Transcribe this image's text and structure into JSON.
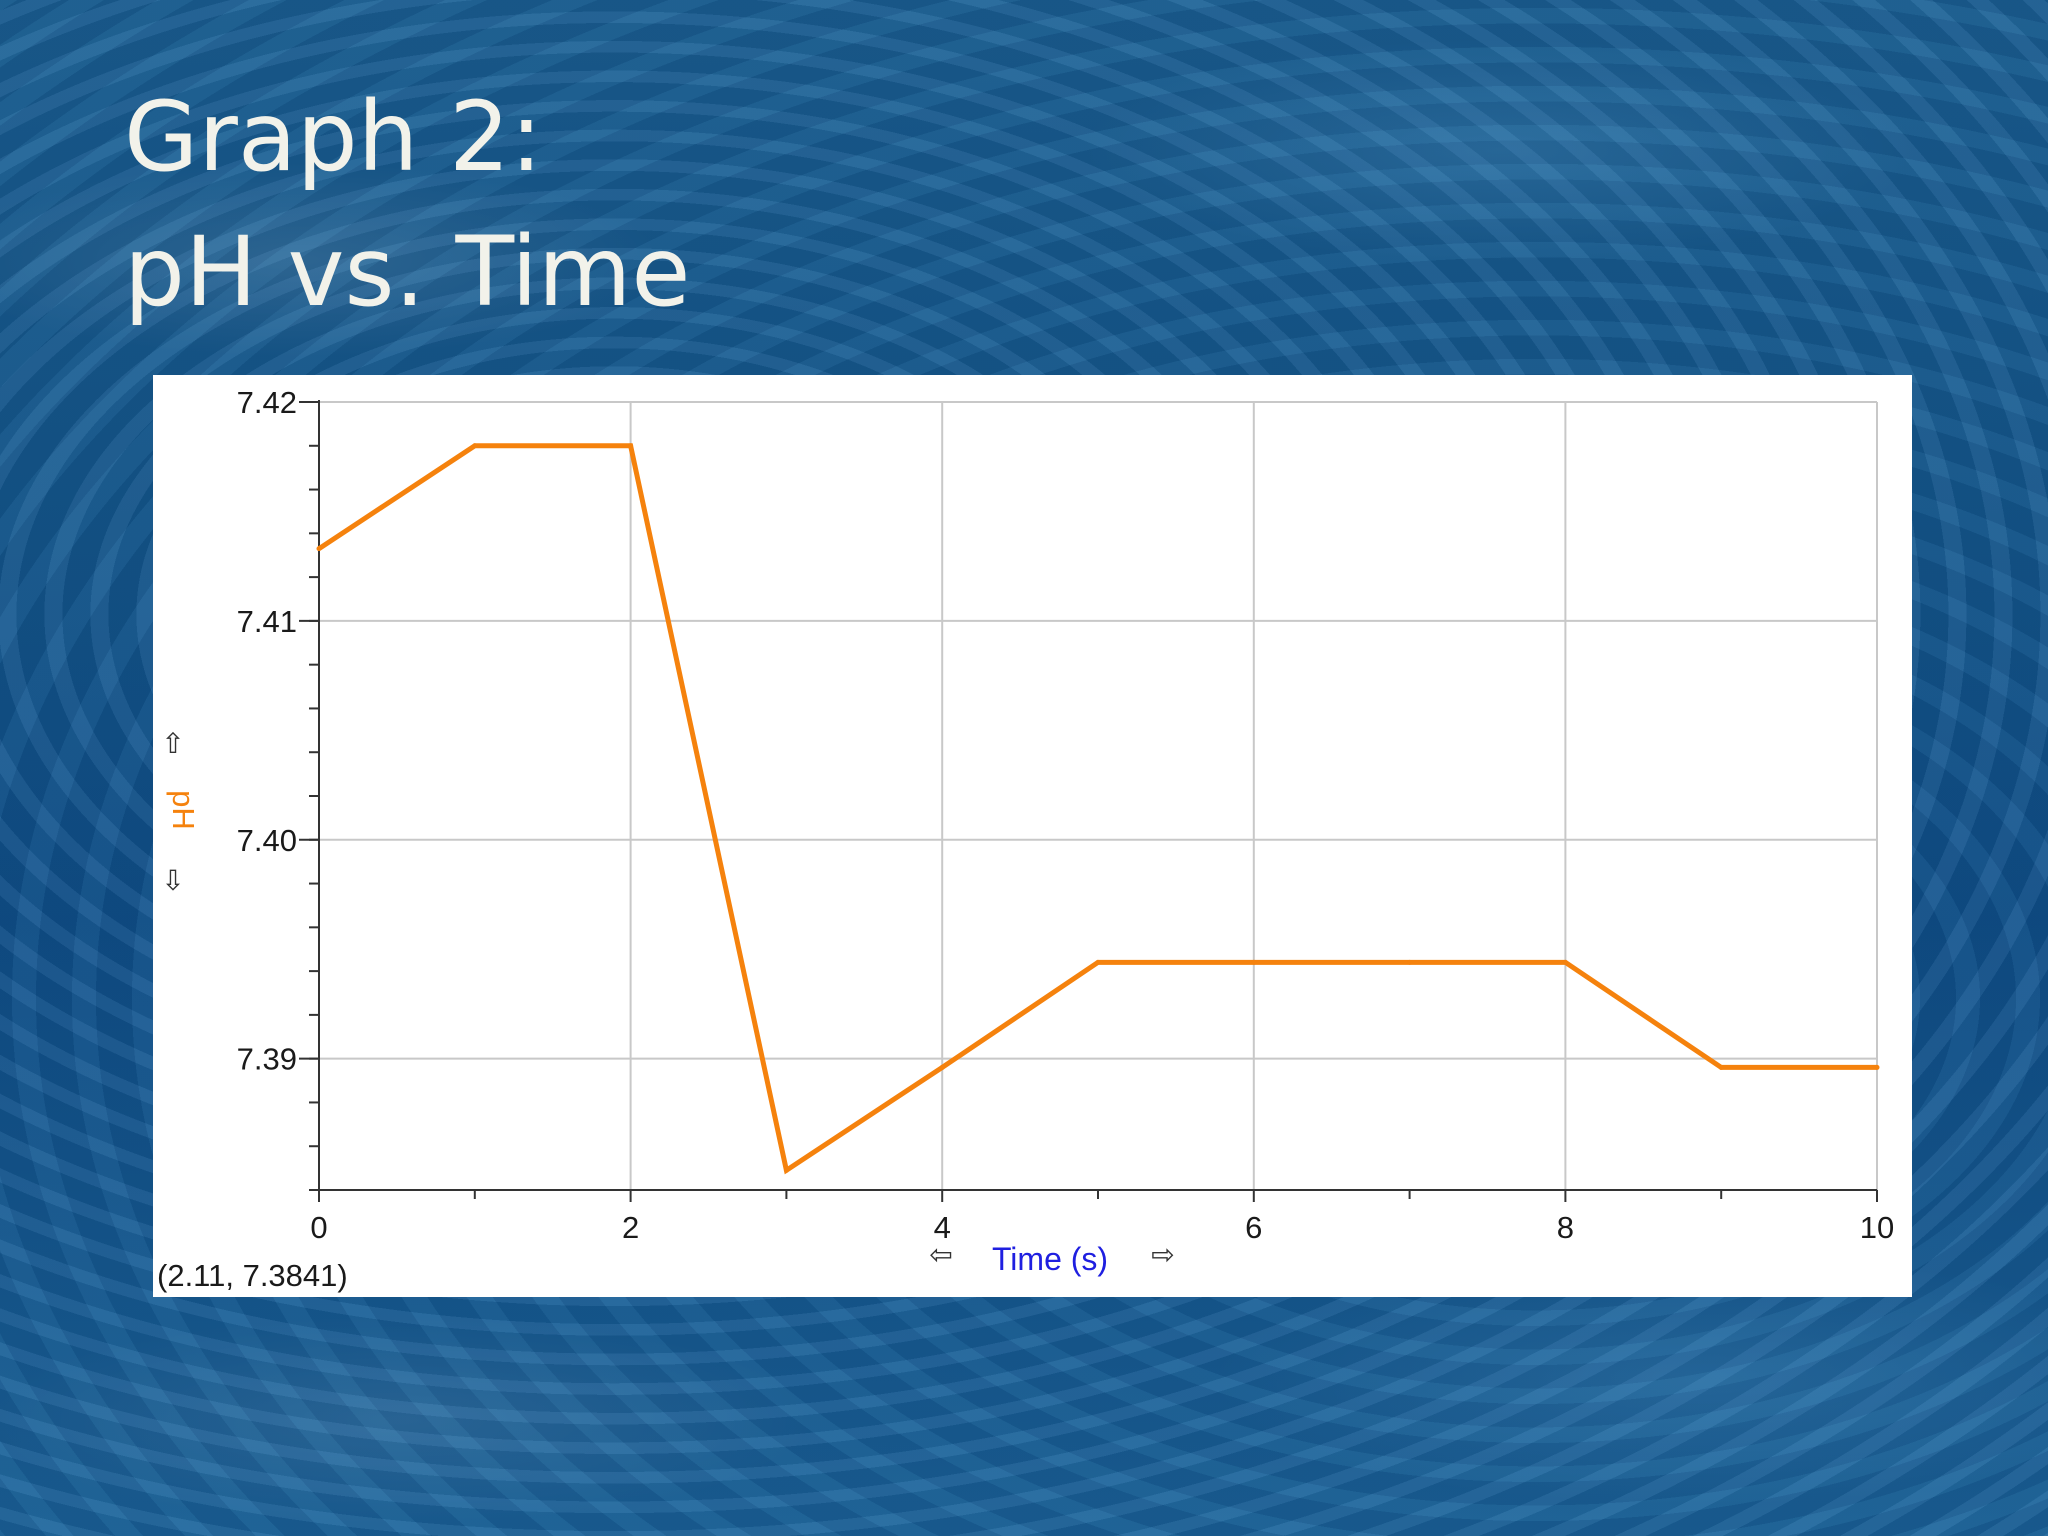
{
  "slide": {
    "title_line1": "Graph 2:",
    "title_line2": "pH vs. Time",
    "background_color": "#14578d",
    "title_color": "#f2f2ea"
  },
  "chart_data": {
    "type": "line",
    "title": "",
    "xlabel": "Time (s)",
    "ylabel": "pH",
    "xlim": [
      0,
      10
    ],
    "ylim": [
      7.384,
      7.42
    ],
    "x_ticks": [
      "0",
      "2",
      "4",
      "6",
      "8",
      "10"
    ],
    "y_ticks": [
      "7.42",
      "7.41",
      "7.40",
      "7.39"
    ],
    "grid": true,
    "series": [
      {
        "name": "pH",
        "color": "#f5820d",
        "x": [
          0,
          1,
          2,
          3,
          4,
          5,
          6,
          7,
          8,
          9,
          10
        ],
        "y": [
          7.4133,
          7.418,
          7.418,
          7.3849,
          7.3896,
          7.3944,
          7.3944,
          7.3944,
          7.3944,
          7.3896,
          7.3896
        ]
      }
    ],
    "xlabel_color": "#1f1fe0",
    "ylabel_color": "#f5820d",
    "axis_arrows": {
      "left": "⇦",
      "right": "⇨",
      "up": "⇧",
      "down": "⇩"
    },
    "coordinate_readout": "(2.11, 7.3841)"
  }
}
